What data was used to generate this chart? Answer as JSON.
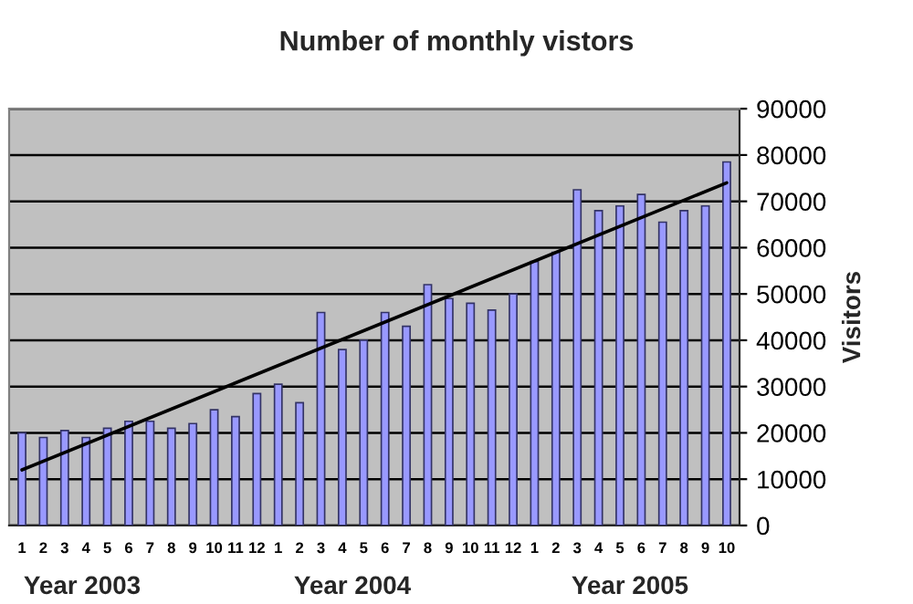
{
  "chart_data": {
    "type": "bar",
    "title": "Number of monthly vistors",
    "ylabel": "Visitors",
    "categories": [
      "1",
      "2",
      "3",
      "4",
      "5",
      "6",
      "7",
      "8",
      "9",
      "10",
      "11",
      "12",
      "1",
      "2",
      "3",
      "4",
      "5",
      "6",
      "7",
      "8",
      "9",
      "10",
      "11",
      "12",
      "1",
      "2",
      "3",
      "4",
      "5",
      "6",
      "7",
      "8",
      "9",
      "10"
    ],
    "series": [
      {
        "color": "#9999ff",
        "values": [
          20000,
          19000,
          20500,
          19000,
          21000,
          22500,
          22500,
          21000,
          22000,
          25000,
          23500,
          28500,
          30500,
          26500,
          46000,
          38000,
          40000,
          46000,
          43000,
          52000,
          49000,
          48000,
          46500,
          50000,
          57000,
          59000,
          72500,
          68000,
          69000,
          71500,
          65500,
          68000,
          69000,
          78500
        ]
      },
      {
        "type": "line",
        "color": "#000000",
        "values": [
          12000,
          null,
          null,
          null,
          null,
          null,
          null,
          null,
          null,
          null,
          null,
          null,
          null,
          null,
          null,
          null,
          null,
          null,
          null,
          null,
          null,
          null,
          null,
          null,
          null,
          null,
          null,
          null,
          null,
          null,
          null,
          null,
          null,
          74000
        ]
      }
    ],
    "ylim": [
      0,
      90000
    ],
    "yticks": [
      0,
      10000,
      20000,
      30000,
      40000,
      50000,
      60000,
      70000,
      80000,
      90000
    ],
    "grid": "y",
    "legend": false,
    "annotations": [
      "Year 2003",
      "Year 2004",
      "Year 2005"
    ]
  }
}
